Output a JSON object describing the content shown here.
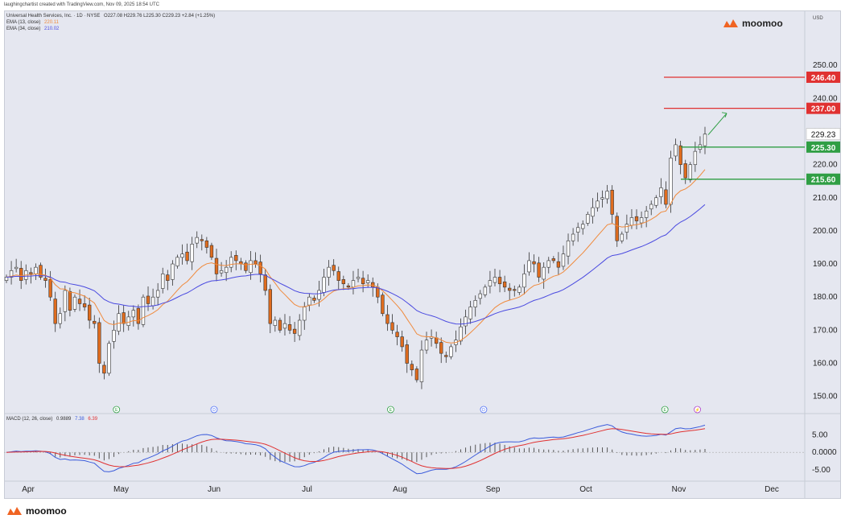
{
  "attribution": "laughingchartist created with TradingView.com, Nov 09, 2025 18:54 UTC",
  "legend": {
    "title": "Universal Health Services, Inc. · 1D · NYSE",
    "ohlc": "O227.08 H229.76 L225.30 C229.23 +2.84 (+1.25%)",
    "ema13_label": "EMA (13, close)",
    "ema13_value": "220.11",
    "ema34_label": "EMA (34, close)",
    "ema34_value": "210.02",
    "macd_label": "MACD (12, 26, close)",
    "macd_hist": "0.9889",
    "macd_line": "7.38",
    "macd_signal": "6.39"
  },
  "brand": "moomoo",
  "currency": "USD",
  "colors": {
    "up": "#ffffff",
    "down": "#e06c1e",
    "ema13": "#f08a3c",
    "ema34": "#4a4ae0",
    "macd": "#3b5bdb",
    "signal": "#e03131",
    "resistance": "#e03131",
    "support": "#2f9e44",
    "bg": "#e5e7f0"
  },
  "chart_data": {
    "type": "candlestick",
    "symbol": "UHS",
    "ylim": [
      147,
      260
    ],
    "price_ticks": [
      150,
      160,
      170,
      180,
      190,
      200,
      210,
      220,
      230,
      240,
      250
    ],
    "x_ticks": [
      "Apr",
      "May",
      "Jun",
      "Jul",
      "Aug",
      "Sep",
      "Oct",
      "Nov",
      "Dec"
    ],
    "last_price": "229.23",
    "levels": [
      {
        "value": 246.4,
        "label": "246.40",
        "kind": "resistance"
      },
      {
        "value": 237.0,
        "label": "237.00",
        "kind": "resistance"
      },
      {
        "value": 225.3,
        "label": "225.30",
        "kind": "support"
      },
      {
        "value": 215.6,
        "label": "215.60",
        "kind": "support"
      }
    ],
    "close_path": [
      186,
      188,
      189,
      185,
      188,
      187,
      189,
      186,
      185,
      180,
      172,
      175,
      182,
      176,
      180,
      178,
      177,
      173,
      172,
      160,
      157,
      166,
      170,
      175,
      172,
      174,
      176,
      172,
      180,
      178,
      180,
      182,
      187,
      185,
      190,
      192,
      193,
      191,
      196,
      198,
      197,
      195,
      192,
      187,
      188,
      189,
      192,
      191,
      190,
      188,
      191,
      190,
      187,
      182,
      172,
      173,
      170,
      172,
      170,
      169,
      173,
      177,
      180,
      179,
      182,
      186,
      189,
      188,
      185,
      184,
      183,
      185,
      186,
      184,
      185,
      183,
      180,
      175,
      172,
      170,
      168,
      165,
      160,
      158,
      155,
      164,
      167,
      168,
      166,
      163,
      162,
      165,
      167,
      171,
      174,
      177,
      179,
      181,
      183,
      185,
      186,
      184,
      183,
      182,
      182,
      183,
      187,
      191,
      190,
      186,
      189,
      191,
      191,
      189,
      193,
      197,
      199,
      201,
      202,
      205,
      207,
      209,
      210,
      212,
      205,
      197,
      199,
      202,
      204,
      203,
      204,
      206,
      208,
      210,
      213,
      208,
      222,
      226,
      220,
      216,
      220,
      224,
      226,
      229.23
    ],
    "ema13_end": 220.11,
    "ema34_end": 210.02,
    "macd": {
      "line_end": 7.38,
      "signal_end": 6.39,
      "hist_end": 0.9889,
      "ticks": [
        "5.00",
        "0.0000",
        "-5.00"
      ],
      "ylim": [
        -7.5,
        8.5
      ]
    },
    "event_markers": [
      {
        "label": "E",
        "month_pos": 0.95
      },
      {
        "label": "D",
        "month_pos": 2.0
      },
      {
        "label": "E",
        "month_pos": 3.9
      },
      {
        "label": "D",
        "month_pos": 4.9
      },
      {
        "label": "E",
        "month_pos": 6.85
      },
      {
        "label": "⚡",
        "month_pos": 7.2
      }
    ]
  }
}
